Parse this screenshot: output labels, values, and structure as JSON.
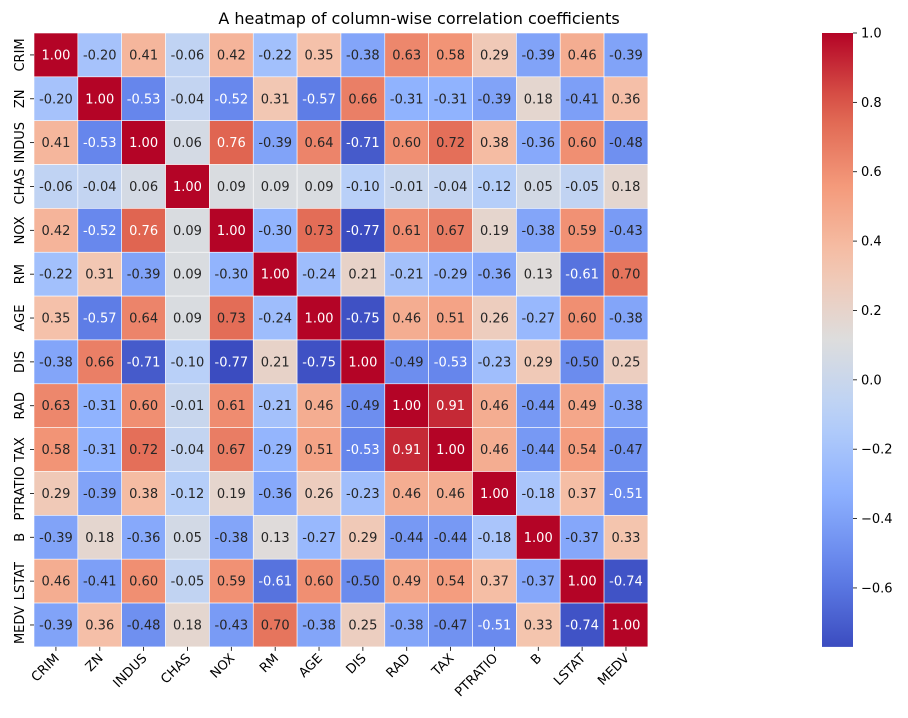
{
  "chart_data": {
    "type": "heatmap",
    "title": "A heatmap of column-wise correlation coefficients",
    "labels": [
      "CRIM",
      "ZN",
      "INDUS",
      "CHAS",
      "NOX",
      "RM",
      "AGE",
      "DIS",
      "RAD",
      "TAX",
      "PTRATIO",
      "B",
      "LSTAT",
      "MEDV"
    ],
    "values": [
      [
        1.0,
        -0.2,
        0.41,
        -0.06,
        0.42,
        -0.22,
        0.35,
        -0.38,
        0.63,
        0.58,
        0.29,
        -0.39,
        0.46,
        -0.39
      ],
      [
        -0.2,
        1.0,
        -0.53,
        -0.04,
        -0.52,
        0.31,
        -0.57,
        0.66,
        -0.31,
        -0.31,
        -0.39,
        0.18,
        -0.41,
        0.36
      ],
      [
        0.41,
        -0.53,
        1.0,
        0.06,
        0.76,
        -0.39,
        0.64,
        -0.71,
        0.6,
        0.72,
        0.38,
        -0.36,
        0.6,
        -0.48
      ],
      [
        -0.06,
        -0.04,
        0.06,
        1.0,
        0.09,
        0.09,
        0.09,
        -0.1,
        -0.01,
        -0.04,
        -0.12,
        0.05,
        -0.05,
        0.18
      ],
      [
        0.42,
        -0.52,
        0.76,
        0.09,
        1.0,
        -0.3,
        0.73,
        -0.77,
        0.61,
        0.67,
        0.19,
        -0.38,
        0.59,
        -0.43
      ],
      [
        -0.22,
        0.31,
        -0.39,
        0.09,
        -0.3,
        1.0,
        -0.24,
        0.21,
        -0.21,
        -0.29,
        -0.36,
        0.13,
        -0.61,
        0.7
      ],
      [
        0.35,
        -0.57,
        0.64,
        0.09,
        0.73,
        -0.24,
        1.0,
        -0.75,
        0.46,
        0.51,
        0.26,
        -0.27,
        0.6,
        -0.38
      ],
      [
        -0.38,
        0.66,
        -0.71,
        -0.1,
        -0.77,
        0.21,
        -0.75,
        1.0,
        -0.49,
        -0.53,
        -0.23,
        0.29,
        -0.5,
        0.25
      ],
      [
        0.63,
        -0.31,
        0.6,
        -0.01,
        0.61,
        -0.21,
        0.46,
        -0.49,
        1.0,
        0.91,
        0.46,
        -0.44,
        0.49,
        -0.38
      ],
      [
        0.58,
        -0.31,
        0.72,
        -0.04,
        0.67,
        -0.29,
        0.51,
        -0.53,
        0.91,
        1.0,
        0.46,
        -0.44,
        0.54,
        -0.47
      ],
      [
        0.29,
        -0.39,
        0.38,
        -0.12,
        0.19,
        -0.36,
        0.26,
        -0.23,
        0.46,
        0.46,
        1.0,
        -0.18,
        0.37,
        -0.51
      ],
      [
        -0.39,
        0.18,
        -0.36,
        0.05,
        -0.38,
        0.13,
        -0.27,
        0.29,
        -0.44,
        -0.44,
        -0.18,
        1.0,
        -0.37,
        0.33
      ],
      [
        0.46,
        -0.41,
        0.6,
        -0.05,
        0.59,
        -0.61,
        0.6,
        -0.5,
        0.49,
        0.54,
        0.37,
        -0.37,
        1.0,
        -0.74
      ],
      [
        -0.39,
        0.36,
        -0.48,
        0.18,
        -0.43,
        0.7,
        -0.38,
        0.25,
        -0.38,
        -0.47,
        -0.51,
        0.33,
        -0.74,
        1.0
      ]
    ],
    "colormap": "coolwarm",
    "vmin": -0.77,
    "vmax": 1.0,
    "colorbar_ticks": [
      "1.0",
      "0.8",
      "0.6",
      "0.4",
      "0.2",
      "0.0",
      "−0.2",
      "−0.4",
      "−0.6"
    ],
    "colorbar_tick_values": [
      1.0,
      0.8,
      0.6,
      0.4,
      0.2,
      0.0,
      -0.2,
      -0.4,
      -0.6
    ],
    "annotation_format": "2 decimals",
    "grid": false,
    "legend": "colorbar-right"
  }
}
